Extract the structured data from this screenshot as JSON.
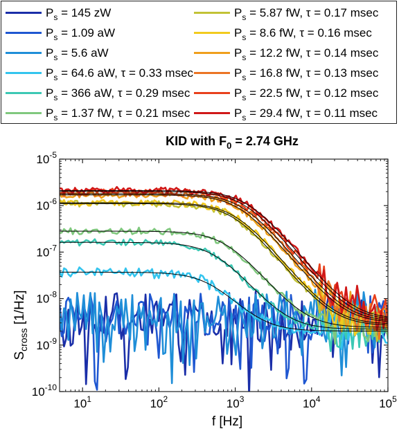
{
  "chart_data": {
    "type": "line",
    "title": "KID with F",
    "title_sub": "0",
    "title_rest": " = 2.74 GHz",
    "xlabel": "f [Hz]",
    "ylabel_main": "S",
    "ylabel_sub": "cross",
    "ylabel_rest": " [1/Hz]",
    "x_scale": "log",
    "y_scale": "log",
    "xlim": [
      5,
      100000
    ],
    "ylim": [
      1e-10,
      1e-05
    ],
    "x_ticks": [
      {
        "base": "10",
        "exp": "1",
        "value": 10
      },
      {
        "base": "10",
        "exp": "2",
        "value": 100
      },
      {
        "base": "10",
        "exp": "3",
        "value": 1000
      },
      {
        "base": "10",
        "exp": "4",
        "value": 10000
      },
      {
        "base": "10",
        "exp": "5",
        "value": 100000
      }
    ],
    "y_ticks": [
      {
        "base": "10",
        "exp": "-10",
        "value": 1e-10
      },
      {
        "base": "10",
        "exp": "-9",
        "value": 1e-09
      },
      {
        "base": "10",
        "exp": "-8",
        "value": 1e-08
      },
      {
        "base": "10",
        "exp": "-7",
        "value": 1e-07
      },
      {
        "base": "10",
        "exp": "-6",
        "value": 1e-06
      },
      {
        "base": "10",
        "exp": "-5",
        "value": 1e-05
      }
    ],
    "grid": false,
    "legend_placement": "top, outside, two columns",
    "fit_color": "#000000",
    "series": [
      {
        "name": "P",
        "sub": "s",
        "label": " = 145 zW",
        "color": "#1a2ea8",
        "level": 4e-09,
        "tau_ms": null,
        "white": 2e-09
      },
      {
        "name": "P",
        "sub": "s",
        "label": " = 1.09 aW",
        "color": "#1f57d1",
        "level": 4e-09,
        "tau_ms": null,
        "white": 2e-09
      },
      {
        "name": "P",
        "sub": "s",
        "label": " = 5.6 aW",
        "color": "#1f8ed8",
        "level": 4.5e-09,
        "tau_ms": null,
        "white": 2e-09
      },
      {
        "name": "P",
        "sub": "s",
        "label": " = 64.6 aW, τ = 0.33 msec",
        "color": "#33c4ee",
        "level": 3.5e-08,
        "tau_ms": 0.33,
        "white": 2e-09
      },
      {
        "name": "P",
        "sub": "s",
        "label": " = 366 aW, τ = 0.29 msec",
        "color": "#3cc8b4",
        "level": 1.6e-07,
        "tau_ms": 0.29,
        "white": 2.2e-09
      },
      {
        "name": "P",
        "sub": "s",
        "label": " = 1.37 fW, τ = 0.21 msec",
        "color": "#80c87e",
        "level": 2.8e-07,
        "tau_ms": 0.21,
        "white": 2.4e-09
      },
      {
        "name": "P",
        "sub": "s",
        "label": " = 5.87 fW, τ = 0.17 msec",
        "color": "#c2c236",
        "level": 1.1e-06,
        "tau_ms": 0.17,
        "white": 2.6e-09
      },
      {
        "name": "P",
        "sub": "s",
        "label": " = 8.6 fW, τ = 0.16 msec",
        "color": "#f2ca1e",
        "level": 1.15e-06,
        "tau_ms": 0.16,
        "white": 2.8e-09
      },
      {
        "name": "P",
        "sub": "s",
        "label": " = 12.2 fW, τ = 0.14 msec",
        "color": "#ef9f1c",
        "level": 1.7e-06,
        "tau_ms": 0.14,
        "white": 3e-09
      },
      {
        "name": "P",
        "sub": "s",
        "label": " = 16.8 fW, τ = 0.13 msec",
        "color": "#eb7424",
        "level": 1.8e-06,
        "tau_ms": 0.13,
        "white": 3.2e-09
      },
      {
        "name": "P",
        "sub": "s",
        "label": " = 22.5 fW, τ = 0.12 msec",
        "color": "#e8401c",
        "level": 2e-06,
        "tau_ms": 0.12,
        "white": 3.4e-09
      },
      {
        "name": "P",
        "sub": "s",
        "label": " = 29.4 fW, τ = 0.11 msec",
        "color": "#d01818",
        "level": 2.1e-06,
        "tau_ms": 0.11,
        "white": 3.6e-09
      }
    ]
  }
}
